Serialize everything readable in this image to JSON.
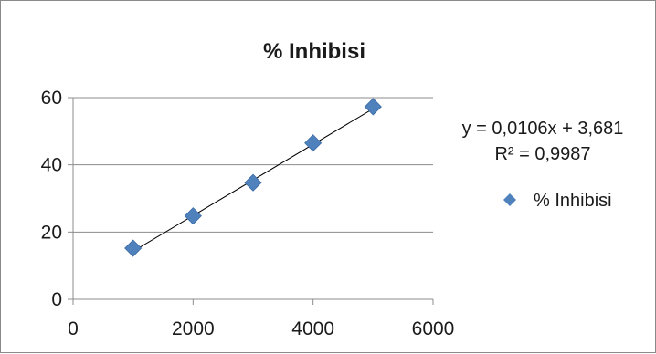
{
  "chart_data": {
    "type": "scatter",
    "title": "% Inhibisi",
    "xlabel": "",
    "ylabel": "",
    "xlim": [
      0,
      6000
    ],
    "ylim": [
      0,
      60
    ],
    "x_ticks": [
      0,
      2000,
      4000,
      6000
    ],
    "y_ticks": [
      0,
      20,
      40,
      60
    ],
    "x_tick_labels": [
      "0",
      "2000",
      "4000",
      "6000"
    ],
    "y_tick_labels": [
      "0",
      "20",
      "40",
      "60"
    ],
    "grid": "horizontal",
    "legend_position": "right",
    "series": [
      {
        "name": "% Inhibisi",
        "marker": "diamond",
        "color": "#4f81bd",
        "x": [
          1000,
          2000,
          3000,
          4000,
          5000
        ],
        "y": [
          15.2,
          24.8,
          34.7,
          46.5,
          57.3
        ]
      }
    ],
    "trendline": {
      "type": "linear",
      "slope": 0.0106,
      "intercept": 3.681,
      "x_range": [
        1000,
        5000
      ],
      "color": "#000000",
      "equation": "y = 0,0106x + 3,681",
      "r_squared": "R² = 0,9987"
    }
  }
}
